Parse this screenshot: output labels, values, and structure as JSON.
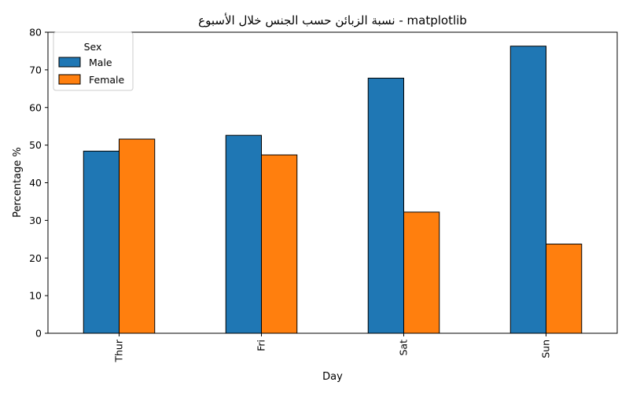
{
  "chart_data": {
    "type": "bar",
    "title": "نسبة الزبائن حسب الجنس خلال الأسبوع - matplotlib",
    "xlabel": "Day",
    "ylabel": "Percentage %",
    "categories": [
      "Thur",
      "Fri",
      "Sat",
      "Sun"
    ],
    "series": [
      {
        "name": "Male",
        "values": [
          48.4,
          52.6,
          67.8,
          76.3
        ],
        "color": "#1f77b4"
      },
      {
        "name": "Female",
        "values": [
          51.6,
          47.4,
          32.2,
          23.7
        ],
        "color": "#ff7f0e"
      }
    ],
    "ylim": [
      0,
      80
    ],
    "yticks": [
      0,
      10,
      20,
      30,
      40,
      50,
      60,
      70,
      80
    ],
    "grid": false,
    "legend": {
      "title": "Sex",
      "position": "top-left"
    },
    "x_tick_rotation": "vertical"
  }
}
